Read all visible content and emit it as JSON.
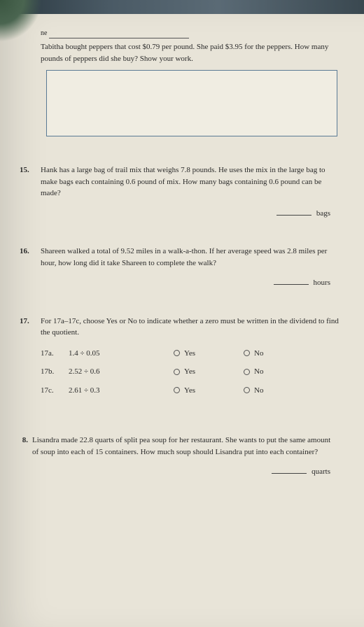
{
  "nameLabel": "ne",
  "intro": "Tabitha bought peppers that cost $0.79 per pound. She paid $3.95 for the peppers. How many pounds of peppers did she buy? Show your work.",
  "q15": {
    "num": "15.",
    "text": "Hank has a large bag of trail mix that weighs 7.8 pounds. He uses the mix in the large bag to make bags each containing 0.6 pound of mix. How many bags containing 0.6 pound can be made?",
    "unit": "bags"
  },
  "q16": {
    "num": "16.",
    "text": "Shareen walked a total of 9.52 miles in a walk-a-thon. If her average speed was 2.8 miles per hour, how long did it take Shareen to complete the walk?",
    "unit": "hours"
  },
  "q17": {
    "num": "17.",
    "text": "For 17a–17c, choose Yes or No to indicate whether a zero must be written in the dividend to find the quotient.",
    "yes": "Yes",
    "no": "No",
    "a_label": "17a.",
    "a_expr": "1.4 ÷ 0.05",
    "b_label": "17b.",
    "b_expr": "2.52 ÷ 0.6",
    "c_label": "17c.",
    "c_expr": "2.61 ÷ 0.3"
  },
  "q18": {
    "num": "8.",
    "text": "Lisandra made 22.8 quarts of split pea soup for her restaurant. She wants to put the same amount of soup into each of 15 containers. How much soup should Lisandra put into each container?",
    "unit": "quarts"
  },
  "colors": {
    "paper": "#e8e4d8",
    "box_border": "#5a7a95",
    "text": "#2a2a2a"
  }
}
